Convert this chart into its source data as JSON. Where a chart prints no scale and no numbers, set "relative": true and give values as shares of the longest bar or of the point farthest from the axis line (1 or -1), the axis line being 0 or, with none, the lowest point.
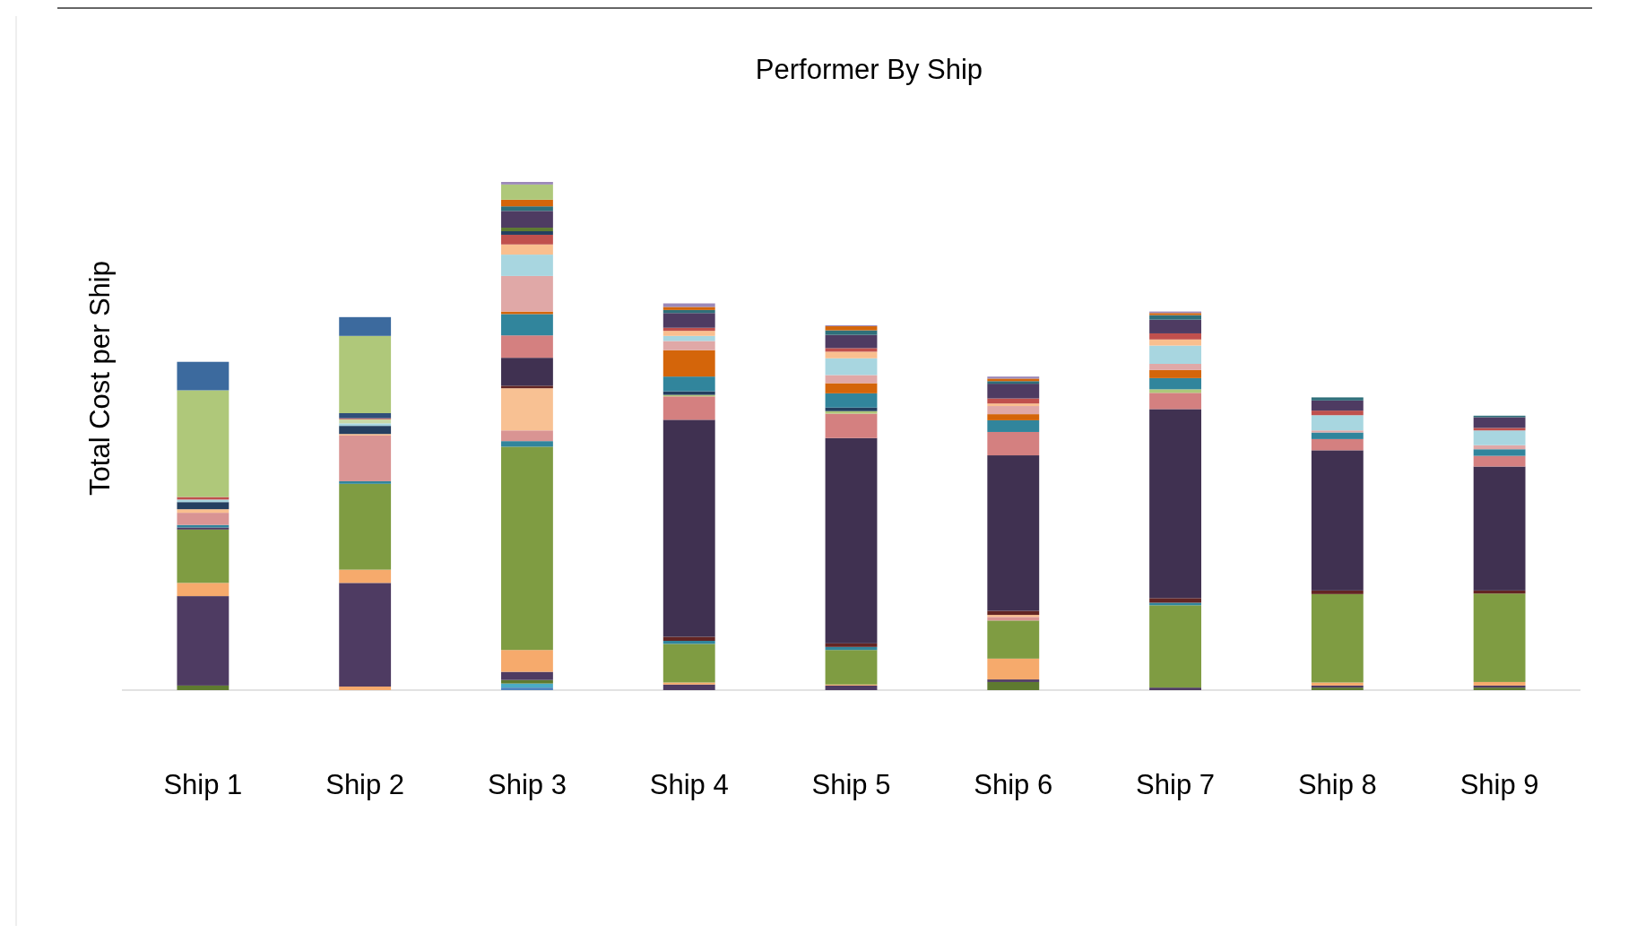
{
  "chart_data": {
    "type": "bar",
    "title": "Performer By Ship",
    "ylabel": "Total Cost per Ship",
    "relative": true,
    "stacked": true,
    "categories": [
      "Ship 1",
      "Ship 2",
      "Ship 3",
      "Ship 4",
      "Ship 5",
      "Ship 6",
      "Ship 7",
      "Ship 8",
      "Ship 9"
    ],
    "series": [
      {
        "values": [
          0.009,
          0.007,
          0.005,
          0.011,
          0.009,
          0.016,
          0.005,
          0.005,
          0.005
        ],
        "colors": [
          "#5e7a30",
          "#f6aa6c",
          "#4f81bd",
          "#4e3b62",
          "#4e3b62",
          "#5e7a30",
          "#4e3b62",
          "#5e7a30",
          "#5e7a30"
        ]
      },
      {
        "values": [
          0.176,
          0.204,
          0.008,
          0.004,
          0.002,
          0.005,
          0.162,
          0.004,
          0.004
        ],
        "colors": [
          "#4e3b62",
          "#4e3b62",
          "#4bacc6",
          "#f6aa6c",
          "#f6aa6c",
          "#4e3b62",
          "#7f9c42",
          "#4e3b62",
          "#4e3b62"
        ]
      },
      {
        "values": [
          0.026,
          0.026,
          0.007,
          0.076,
          0.068,
          0.041,
          0.005,
          0.006,
          0.007
        ],
        "colors": [
          "#f6aa6c",
          "#f6aa6c",
          "#5e7a30",
          "#7f9c42",
          "#7f9c42",
          "#f6aa6c",
          "#31859c",
          "#f6aa6c",
          "#f6aa6c"
        ]
      },
      {
        "values": [
          0.105,
          0.169,
          0.016,
          0.006,
          0.006,
          0.075,
          0.009,
          0.174,
          0.174
        ],
        "colors": [
          "#7f9c42",
          "#7f9c42",
          "#4e3b62",
          "#31859c",
          "#31859c",
          "#7f9c42",
          "#632523",
          "#7f9c42",
          "#7f9c42"
        ]
      },
      {
        "values": [
          0.004,
          0.005,
          0.043,
          0.008,
          0.007,
          0.007,
          0.372,
          0.007,
          0.006
        ],
        "colors": [
          "#4e3b62",
          "#31859c",
          "#f6aa6c",
          "#632523",
          "#632523",
          "#d99493",
          "#403151",
          "#632523",
          "#632523"
        ]
      },
      {
        "values": [
          0.005,
          0.09,
          0.4,
          0.427,
          0.404,
          0.004,
          0.032,
          0.276,
          0.244
        ],
        "colors": [
          "#31859c",
          "#d99493",
          "#7f9c42",
          "#403151",
          "#403151",
          "#f9bf8f",
          "#d48080",
          "#403151",
          "#403151"
        ]
      },
      {
        "values": [
          0.024,
          0.003,
          0.011,
          0.046,
          0.048,
          0.008,
          0.007,
          0.022,
          0.021
        ],
        "colors": [
          "#d99493",
          "#f9bf8f",
          "#31859c",
          "#d48080",
          "#d48080",
          "#632523",
          "#afc87a",
          "#d48080",
          "#d48080"
        ]
      },
      {
        "values": [
          0.007,
          0.016,
          0.021,
          0.003,
          0.005,
          0.306,
          0.022,
          0.013,
          0.013
        ],
        "colors": [
          "#f9bf8f",
          "#243f60",
          "#d99493",
          "#afc87a",
          "#afc87a",
          "#403151",
          "#31859c",
          "#31859c",
          "#31859c"
        ]
      },
      {
        "values": [
          0.014,
          0.005,
          0.083,
          0.007,
          0.007,
          0.046,
          0.016,
          0.004,
          0.008
        ],
        "colors": [
          "#243f60",
          "#a8d6e0",
          "#f8c193",
          "#243f60",
          "#243f60",
          "#d48080",
          "#d4650a",
          "#e0a8a7",
          "#e0a8a7"
        ]
      },
      {
        "values": [
          0.005,
          0.008,
          0.005,
          0.029,
          0.028,
          0.023,
          0.012,
          0.03,
          0.029
        ],
        "colors": [
          "#a8d6e0",
          "#c7d9a8",
          "#632523",
          "#31859c",
          "#31859c",
          "#31859c",
          "#e0a8a7",
          "#a8d6e0",
          "#a8d6e0"
        ]
      },
      {
        "values": [
          0.005,
          0.002,
          0.055,
          0.052,
          0.02,
          0.012,
          0.036,
          0.009,
          0.005
        ],
        "colors": [
          "#c0504d",
          "#c0504d",
          "#403151",
          "#d4650a",
          "#d4650a",
          "#d4650a",
          "#a8d6e0",
          "#c0504d",
          "#c0504d"
        ]
      },
      {
        "values": [
          0.21,
          0.01,
          0.044,
          0.018,
          0.016,
          0.016,
          0.012,
          0.02,
          0.021
        ],
        "colors": [
          "#afc87a",
          "#2f4f7a",
          "#d48080",
          "#e0a8a7",
          "#e0a8a7",
          "#e0a8a7",
          "#f9bf8f",
          "#4e3b62",
          "#4e3b62"
        ]
      },
      {
        "values": [
          0.056,
          0.152,
          0.042,
          0.01,
          0.033,
          0.005,
          0.012,
          0.006,
          0.003
        ],
        "colors": [
          "#3c6a9e",
          "#afc87a",
          "#31859c",
          "#a8d6e0",
          "#a8d6e0",
          "#f9bf8f",
          "#c0504d",
          "#2f6f7a",
          "#2f6f7a"
        ]
      },
      {
        "values": [
          null,
          0.037,
          0.005,
          0.01,
          0.013,
          0.01,
          0.027,
          null,
          null
        ],
        "colors": [
          null,
          "#3c6a9e",
          "#d4650a",
          "#f9bf8f",
          "#f9bf8f",
          "#c0504d",
          "#4e3b62",
          null,
          null
        ]
      },
      {
        "values": [
          null,
          null,
          0.07,
          0.006,
          0.007,
          0.029,
          0.009,
          null,
          null
        ],
        "colors": [
          null,
          null,
          "#e0a8a7",
          "#c0504d",
          "#c0504d",
          "#4e3b62",
          "#2f6f7a",
          null,
          null
        ]
      },
      {
        "values": [
          null,
          null,
          0.042,
          0.029,
          0.026,
          0.005,
          0.004,
          null,
          null
        ],
        "colors": [
          null,
          null,
          "#a8d6e0",
          "#4e3b62",
          "#4e3b62",
          "#2f6f7a",
          "#d4650a",
          null,
          null
        ]
      },
      {
        "values": [
          null,
          null,
          0.02,
          0.006,
          0.009,
          0.005,
          0.003,
          null,
          null
        ],
        "colors": [
          null,
          null,
          "#f9bf8f",
          "#2f6f7a",
          "#2f6f7a",
          "#d4650a",
          "#9b88b8",
          null,
          null
        ]
      },
      {
        "values": [
          null,
          null,
          0.019,
          0.006,
          0.008,
          0.004,
          null,
          null,
          null
        ],
        "colors": [
          null,
          null,
          "#c0504d",
          "#d4650a",
          "#d4650a",
          "#9b88b8",
          null,
          null,
          null
        ]
      },
      {
        "values": [
          null,
          null,
          0.007,
          0.007,
          0.002,
          null,
          null,
          null,
          null
        ],
        "colors": [
          null,
          null,
          "#243f60",
          "#9b88b8",
          "#9b88b8",
          null,
          null,
          null,
          null
        ]
      },
      {
        "values": [
          null,
          null,
          0.007,
          null,
          null,
          null,
          null,
          null,
          null
        ],
        "colors": [
          null,
          null,
          "#5e7a30",
          null,
          null,
          null,
          null,
          null,
          null
        ]
      },
      {
        "values": [
          null,
          null,
          0.033,
          null,
          null,
          null,
          null,
          null,
          null
        ],
        "colors": [
          null,
          null,
          "#4e3b62",
          null,
          null,
          null,
          null,
          null,
          null
        ]
      },
      {
        "values": [
          null,
          null,
          0.009,
          null,
          null,
          null,
          null,
          null,
          null
        ],
        "colors": [
          null,
          null,
          "#2f6f7a",
          null,
          null,
          null,
          null,
          null,
          null
        ]
      },
      {
        "values": [
          null,
          null,
          0.013,
          null,
          null,
          null,
          null,
          null,
          null
        ],
        "colors": [
          null,
          null,
          "#d4650a",
          null,
          null,
          null,
          null,
          null,
          null
        ]
      },
      {
        "values": [
          null,
          null,
          0.03,
          null,
          null,
          null,
          null,
          null,
          null
        ],
        "colors": [
          null,
          null,
          "#afc87a",
          null,
          null,
          null,
          null,
          null,
          null
        ]
      },
      {
        "values": [
          null,
          null,
          0.005,
          null,
          null,
          null,
          null,
          null,
          null
        ],
        "colors": [
          null,
          null,
          "#9b88b8",
          null,
          null,
          null,
          null,
          null,
          null
        ]
      }
    ]
  }
}
